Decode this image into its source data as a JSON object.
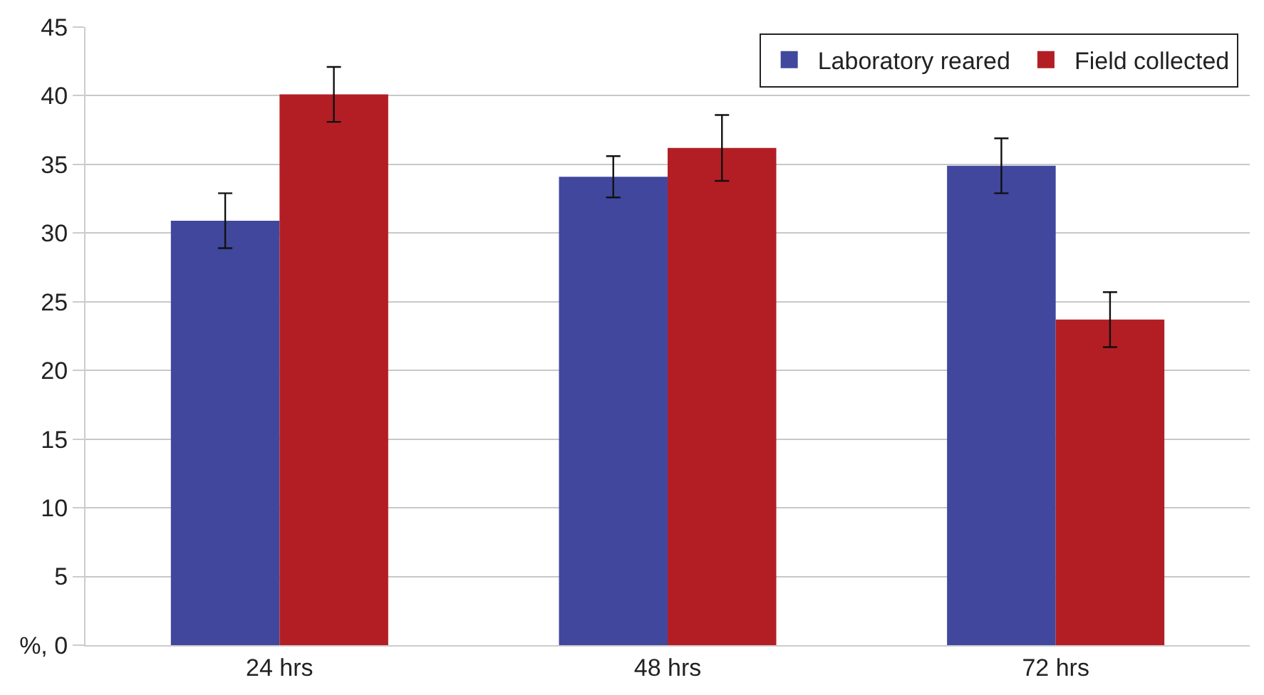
{
  "chart_data": {
    "type": "bar",
    "categories": [
      "24 hrs",
      "48 hrs",
      "72 hrs"
    ],
    "series": [
      {
        "name": "Laboratory reared",
        "color": "#40479d",
        "values": [
          30.9,
          34.1,
          34.9
        ],
        "errors": [
          2.0,
          1.5,
          2.0
        ]
      },
      {
        "name": "Field collected",
        "color": "#b31e25",
        "values": [
          40.1,
          36.2,
          23.7
        ],
        "errors": [
          2.0,
          2.4,
          2.0
        ]
      }
    ],
    "ylim": [
      0,
      45
    ],
    "yticks": [
      {
        "value": 0,
        "label": "%, 0"
      },
      5,
      10,
      15,
      20,
      25,
      30,
      35,
      40,
      45
    ],
    "grid": "y",
    "legend": "top right"
  }
}
